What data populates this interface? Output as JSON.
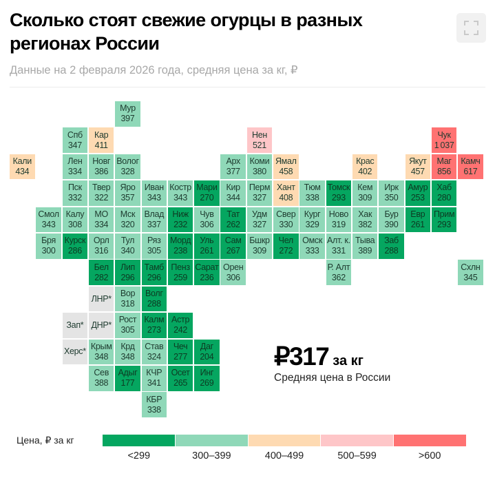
{
  "header": {
    "title": "Сколько стоят свежие огурцы в разных регионах России",
    "subtitle": "Данные на 2 февраля 2026 года, средняя цена за кг, ₽",
    "fullscreen_icon": "fullscreen-icon"
  },
  "summary": {
    "value": "₽317",
    "unit": "за кг",
    "caption": "Средняя цена в России"
  },
  "legend": {
    "title": "Цена, ₽ за кг",
    "bins": [
      {
        "label": "<299",
        "color": "#05a660"
      },
      {
        "label": "300–399",
        "color": "#8fd8b8"
      },
      {
        "label": "400–499",
        "color": "#fedab2"
      },
      {
        "label": "500–599",
        "color": "#fec6c8"
      },
      {
        "label": ">600",
        "color": "#ff7272"
      }
    ],
    "no_data_color": "#e4e4e4"
  },
  "chart_data": {
    "type": "tile-map",
    "title": "Сколько стоят свежие огурцы в разных регионах России",
    "unit": "₽ за кг",
    "regions": [
      {
        "name": "Мур",
        "value": 397
      },
      {
        "name": "Спб",
        "value": 347
      },
      {
        "name": "Кар",
        "value": 411
      },
      {
        "name": "Нен",
        "value": 521
      },
      {
        "name": "Чук",
        "value": 1037
      },
      {
        "name": "Кали",
        "value": 434
      },
      {
        "name": "Лен",
        "value": 334
      },
      {
        "name": "Новг",
        "value": 386
      },
      {
        "name": "Волог",
        "value": 328
      },
      {
        "name": "Арх",
        "value": 377
      },
      {
        "name": "Коми",
        "value": 380
      },
      {
        "name": "Ямал",
        "value": 458
      },
      {
        "name": "Крас",
        "value": 402
      },
      {
        "name": "Якут",
        "value": 457
      },
      {
        "name": "Маг",
        "value": 856
      },
      {
        "name": "Камч",
        "value": 617
      },
      {
        "name": "Пск",
        "value": 332
      },
      {
        "name": "Твер",
        "value": 322
      },
      {
        "name": "Яро",
        "value": 357
      },
      {
        "name": "Иван",
        "value": 343
      },
      {
        "name": "Костр",
        "value": 343
      },
      {
        "name": "Мари",
        "value": 270
      },
      {
        "name": "Кир",
        "value": 344
      },
      {
        "name": "Перм",
        "value": 327
      },
      {
        "name": "Хант",
        "value": 408
      },
      {
        "name": "Тюм",
        "value": 338
      },
      {
        "name": "Томск",
        "value": 293
      },
      {
        "name": "Кем",
        "value": 309
      },
      {
        "name": "Ирк",
        "value": 350
      },
      {
        "name": "Амур",
        "value": 253
      },
      {
        "name": "Хаб",
        "value": 280
      },
      {
        "name": "Смол",
        "value": 343
      },
      {
        "name": "Калу",
        "value": 308
      },
      {
        "name": "МО",
        "value": 334
      },
      {
        "name": "Мск",
        "value": 320
      },
      {
        "name": "Влад",
        "value": 337
      },
      {
        "name": "Ниж",
        "value": 232
      },
      {
        "name": "Чув",
        "value": 306
      },
      {
        "name": "Тат",
        "value": 262
      },
      {
        "name": "Удм",
        "value": 327
      },
      {
        "name": "Свер",
        "value": 330
      },
      {
        "name": "Кург",
        "value": 329
      },
      {
        "name": "Ново",
        "value": 319
      },
      {
        "name": "Хак",
        "value": 382
      },
      {
        "name": "Бур",
        "value": 390
      },
      {
        "name": "Евр",
        "value": 261
      },
      {
        "name": "Прим",
        "value": 293
      },
      {
        "name": "Бря",
        "value": 300
      },
      {
        "name": "Курск",
        "value": 286
      },
      {
        "name": "Орл",
        "value": 316
      },
      {
        "name": "Тул",
        "value": 340
      },
      {
        "name": "Ряз",
        "value": 305
      },
      {
        "name": "Морд",
        "value": 238
      },
      {
        "name": "Уль",
        "value": 261
      },
      {
        "name": "Сам",
        "value": 267
      },
      {
        "name": "Бшкр",
        "value": 309
      },
      {
        "name": "Чел",
        "value": 272
      },
      {
        "name": "Омск",
        "value": 333
      },
      {
        "name": "Алт. к.",
        "value": 331
      },
      {
        "name": "Тыва",
        "value": 389
      },
      {
        "name": "Заб",
        "value": 288
      },
      {
        "name": "Бел",
        "value": 282
      },
      {
        "name": "Лип",
        "value": 296
      },
      {
        "name": "Тамб",
        "value": 296
      },
      {
        "name": "Пенз",
        "value": 259
      },
      {
        "name": "Сарат",
        "value": 236
      },
      {
        "name": "Орен",
        "value": 306
      },
      {
        "name": "Р. Алт",
        "value": 362
      },
      {
        "name": "Схлн",
        "value": 345
      },
      {
        "name": "ЛНР*",
        "value": null
      },
      {
        "name": "Вор",
        "value": 318
      },
      {
        "name": "Волг",
        "value": 288
      },
      {
        "name": "Зап*",
        "value": null
      },
      {
        "name": "ДНР*",
        "value": null
      },
      {
        "name": "Рост",
        "value": 305
      },
      {
        "name": "Калм",
        "value": 273
      },
      {
        "name": "Астр",
        "value": 242
      },
      {
        "name": "Херс*",
        "value": null
      },
      {
        "name": "Крым",
        "value": 348
      },
      {
        "name": "Крд",
        "value": 348
      },
      {
        "name": "Став",
        "value": 324
      },
      {
        "name": "Чеч",
        "value": 277
      },
      {
        "name": "Даг",
        "value": 204
      },
      {
        "name": "Сев",
        "value": 388
      },
      {
        "name": "Адыг",
        "value": 177
      },
      {
        "name": "КЧР",
        "value": 341
      },
      {
        "name": "Осет",
        "value": 265
      },
      {
        "name": "Инг",
        "value": 269
      },
      {
        "name": "КБР",
        "value": 338
      }
    ]
  }
}
